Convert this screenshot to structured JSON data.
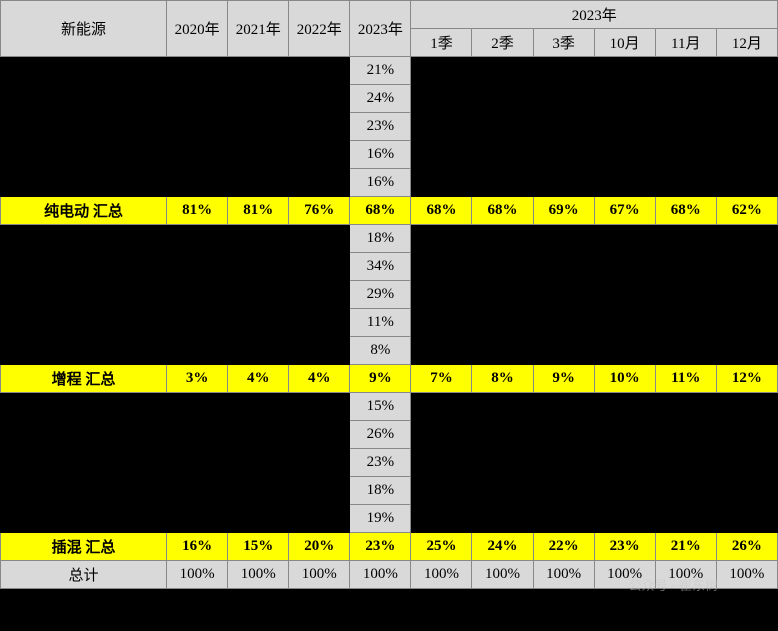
{
  "header": {
    "corner": "新能源",
    "years": [
      "2020年",
      "2021年",
      "2022年",
      "2023年"
    ],
    "group_label": "2023年",
    "sub_cols": [
      "1季",
      "2季",
      "3季",
      "10月",
      "11月",
      "12月"
    ]
  },
  "sections": [
    {
      "detail_2023": [
        "21%",
        "24%",
        "23%",
        "16%",
        "16%"
      ],
      "summary": {
        "label": "纯电动 汇总",
        "values": [
          "81%",
          "81%",
          "76%",
          "68%",
          "68%",
          "68%",
          "69%",
          "67%",
          "68%",
          "62%"
        ]
      }
    },
    {
      "detail_2023": [
        "18%",
        "34%",
        "29%",
        "11%",
        "8%"
      ],
      "summary": {
        "label": "增程 汇总",
        "values": [
          "3%",
          "4%",
          "4%",
          "9%",
          "7%",
          "8%",
          "9%",
          "10%",
          "11%",
          "12%"
        ]
      }
    },
    {
      "detail_2023": [
        "15%",
        "26%",
        "23%",
        "18%",
        "19%"
      ],
      "summary": {
        "label": "插混 汇总",
        "values": [
          "16%",
          "15%",
          "20%",
          "23%",
          "25%",
          "24%",
          "22%",
          "23%",
          "21%",
          "26%"
        ]
      }
    }
  ],
  "total": {
    "label": "总计",
    "values": [
      "100%",
      "100%",
      "100%",
      "100%",
      "100%",
      "100%",
      "100%",
      "100%",
      "100%",
      "100%"
    ]
  },
  "watermark": "公众号 · 崔东树",
  "colors": {
    "header_bg": "#d9d9d9",
    "yellow": "#ffff00",
    "black": "#000000",
    "border": "#888888"
  }
}
